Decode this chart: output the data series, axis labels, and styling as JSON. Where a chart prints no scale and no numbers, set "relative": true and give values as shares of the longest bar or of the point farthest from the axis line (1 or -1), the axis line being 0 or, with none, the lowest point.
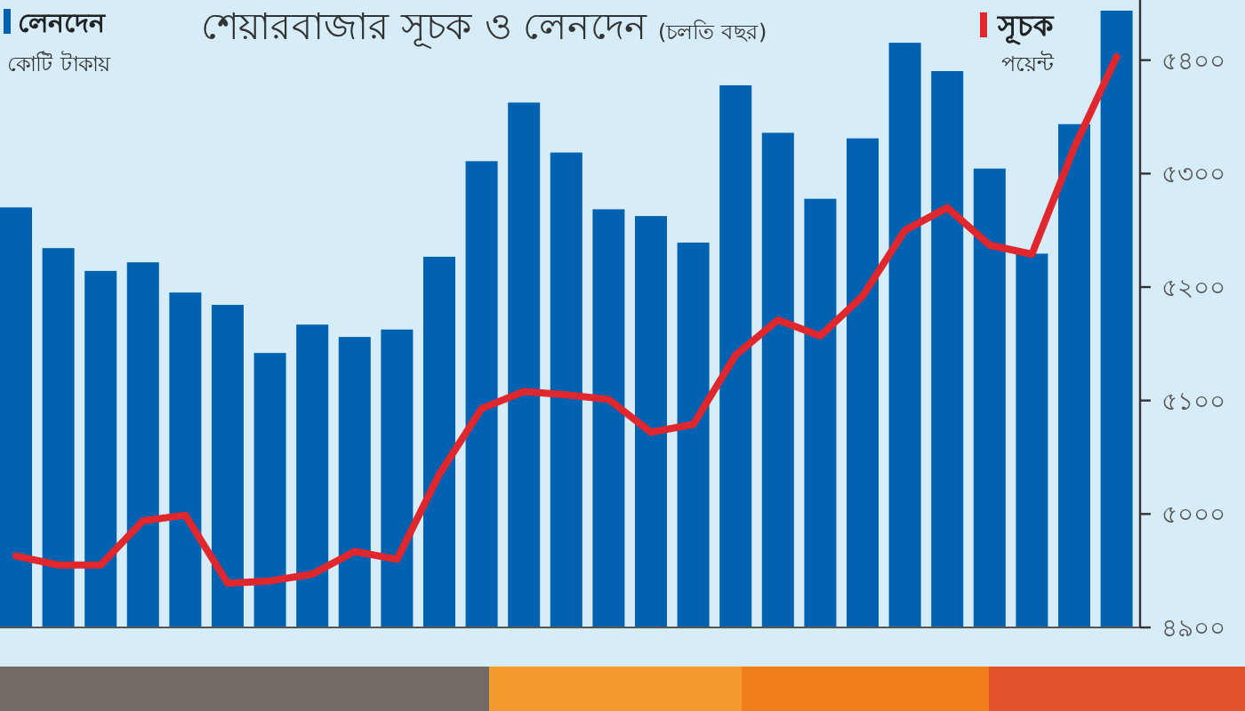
{
  "chart_data": [
    {
      "type": "bar",
      "relative": true,
      "annotations": [
        "কোটি টাকায়"
      ],
      "categories": [
        null,
        null,
        null,
        null,
        null,
        null,
        null,
        null,
        null,
        null,
        null,
        null,
        null,
        null,
        null,
        null,
        null,
        null,
        null,
        null,
        null,
        null,
        null,
        null,
        null,
        null,
        null
      ],
      "series": [
        {
          "name": "লেনদেন",
          "color": "#0062b0",
          "values": [
            0.681,
            0.615,
            0.578,
            0.592,
            0.543,
            0.523,
            0.445,
            0.491,
            0.471,
            0.483,
            0.601,
            0.756,
            0.851,
            0.77,
            0.678,
            0.667,
            0.624,
            0.879,
            0.802,
            0.695,
            0.793,
            0.948,
            0.902,
            0.744,
            0.606,
            0.816,
            1
          ]
        }
      ],
      "legend": "top left"
    },
    {
      "type": "line",
      "title": "শেয়ারবাজার সূচক ও লেনদেন",
      "subtitle": "(চলতি বছর)",
      "ylabel": "পয়েন্ট",
      "categories": [
        null,
        null,
        null,
        null,
        null,
        null,
        null,
        null,
        null,
        null,
        null,
        null,
        null,
        null,
        null,
        null,
        null,
        null,
        null,
        null,
        null,
        null,
        null,
        null,
        null,
        null,
        null
      ],
      "series": [
        {
          "name": "সূচক",
          "color": "#e0272d",
          "values": [
            4963,
            4955,
            4955,
            4994,
            4999,
            4939,
            4941,
            4947,
            4967,
            4960,
            5035,
            5093,
            5108,
            5105,
            5101,
            5072,
            5079,
            5140,
            5171,
            5157,
            5192,
            5250,
            5270,
            5237,
            5229,
            5323,
            5403
          ]
        }
      ],
      "ylim": [
        4900,
        5453
      ],
      "yticks": [
        {
          "value": 4900,
          "label": "৪৯০০"
        },
        {
          "value": 5000,
          "label": "৫০০০"
        },
        {
          "value": 5100,
          "label": "৫১০০"
        },
        {
          "value": 5200,
          "label": "৫২০০"
        },
        {
          "value": 5300,
          "label": "৫৩০০"
        },
        {
          "value": 5400,
          "label": "৫৪০০"
        }
      ],
      "legend": "top right",
      "marker": "none",
      "line_style": "solid"
    }
  ]
}
